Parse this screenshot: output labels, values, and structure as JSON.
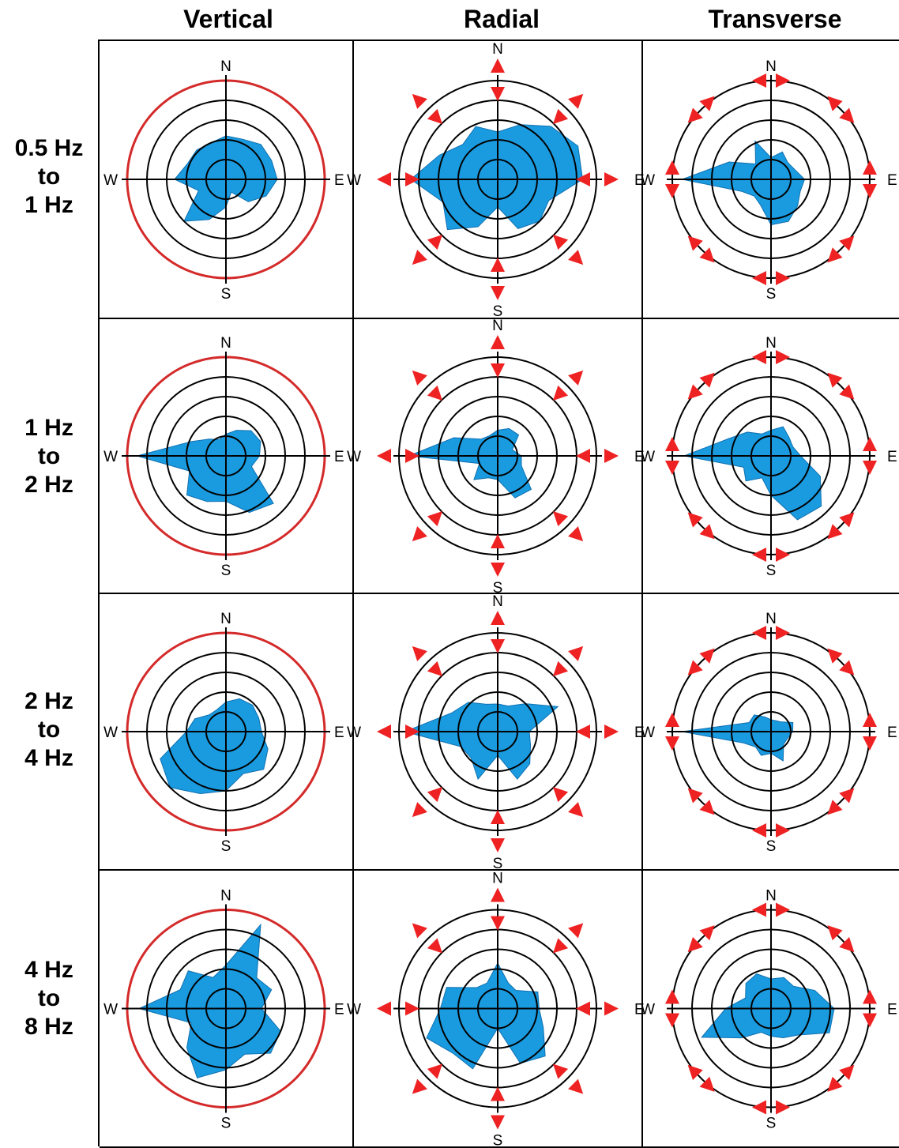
{
  "columns": [
    "Vertical",
    "Radial",
    "Transverse"
  ],
  "rows": [
    {
      "line1": "0.5 Hz",
      "line2": "to",
      "line3": "1 Hz"
    },
    {
      "line1": "1 Hz",
      "line2": "to",
      "line3": "2 Hz"
    },
    {
      "line1": "2 Hz",
      "line2": "to",
      "line3": "4 Hz"
    },
    {
      "line1": "4 Hz",
      "line2": "to",
      "line3": "8 Hz"
    }
  ],
  "compass": {
    "n": "N",
    "e": "E",
    "s": "S",
    "w": "W"
  },
  "colors": {
    "fill": "#1a9be0",
    "ring": "#d42a2a",
    "arrow": "#ee2222",
    "line": "#000000"
  },
  "chart_data": {
    "type": "polar-area",
    "rings": 5,
    "rmax": 5,
    "angles_deg": [
      0,
      22.5,
      45,
      67.5,
      90,
      112.5,
      135,
      157.5,
      180,
      202.5,
      225,
      247.5,
      270,
      292.5,
      315,
      337.5
    ],
    "panels": [
      {
        "row": 0,
        "col": 0,
        "r": [
          2.2,
          2.2,
          2.5,
          2.5,
          2.6,
          2.2,
          1.6,
          0.7,
          1.4,
          2.2,
          3.0,
          1.5,
          2.6,
          2.1,
          2.1,
          2.0
        ]
      },
      {
        "row": 0,
        "col": 1,
        "r": [
          2.4,
          3.0,
          3.8,
          4.4,
          4.3,
          2.8,
          3.0,
          2.7,
          1.4,
          2.6,
          3.6,
          3.0,
          4.4,
          3.2,
          2.5,
          2.9
        ]
      },
      {
        "row": 0,
        "col": 2,
        "r": [
          1.1,
          1.5,
          1.2,
          1.3,
          1.7,
          1.6,
          1.9,
          2.3,
          2.3,
          1.4,
          1.2,
          1.6,
          4.5,
          2.3,
          1.1,
          2.1
        ]
      },
      {
        "row": 1,
        "col": 0,
        "r": [
          1.1,
          1.4,
          1.8,
          1.9,
          1.7,
          1.4,
          3.4,
          3.1,
          2.3,
          2.5,
          2.8,
          2.0,
          4.5,
          1.9,
          1.2,
          0.9
        ]
      },
      {
        "row": 1,
        "col": 1,
        "r": [
          1.3,
          1.5,
          1.5,
          0.8,
          1.2,
          1.3,
          2.4,
          2.3,
          1.2,
          1.2,
          1.7,
          1.0,
          4.5,
          2.4,
          1.2,
          1.1
        ]
      },
      {
        "row": 1,
        "col": 2,
        "r": [
          1.3,
          1.6,
          1.3,
          1.2,
          1.5,
          2.7,
          3.6,
          3.5,
          2.0,
          1.2,
          1.8,
          1.5,
          4.4,
          2.3,
          1.7,
          1.2
        ]
      },
      {
        "row": 2,
        "col": 0,
        "r": [
          1.5,
          1.8,
          1.9,
          1.8,
          1.8,
          2.3,
          2.7,
          2.3,
          3.0,
          3.4,
          4.0,
          3.6,
          2.0,
          1.7,
          1.2,
          1.2
        ]
      },
      {
        "row": 2,
        "col": 1,
        "r": [
          1.4,
          1.4,
          2.0,
          3.3,
          1.6,
          1.8,
          2.3,
          2.6,
          1.2,
          2.6,
          1.9,
          2.0,
          4.7,
          2.5,
          2.1,
          1.5
        ]
      },
      {
        "row": 2,
        "col": 2,
        "r": [
          0.6,
          0.6,
          0.7,
          1.2,
          1.1,
          0.9,
          0.9,
          1.6,
          1.1,
          1.3,
          1.1,
          1.5,
          4.5,
          1.2,
          1.2,
          0.8
        ]
      },
      {
        "row": 3,
        "col": 0,
        "r": [
          2.2,
          4.6,
          2.2,
          2.5,
          1.8,
          3.0,
          3.2,
          2.5,
          3.1,
          3.8,
          2.8,
          1.9,
          4.4,
          2.5,
          2.7,
          1.7
        ]
      },
      {
        "row": 3,
        "col": 1,
        "r": [
          2.3,
          1.4,
          1.3,
          2.2,
          2.1,
          2.5,
          3.4,
          3.0,
          1.0,
          3.3,
          3.2,
          3.9,
          2.9,
          2.8,
          1.5,
          1.4
        ]
      },
      {
        "row": 3,
        "col": 2,
        "r": [
          1.5,
          1.7,
          1.6,
          2.4,
          3.2,
          3.2,
          1.9,
          1.6,
          1.4,
          1.3,
          2.1,
          3.8,
          2.3,
          1.4,
          1.8,
          1.9
        ]
      }
    ]
  }
}
